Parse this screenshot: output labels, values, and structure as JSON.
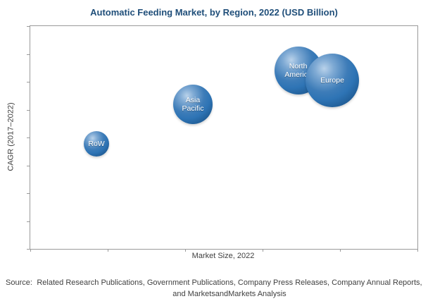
{
  "title": "Automatic Feeding Market, by Region, 2022 (USD Billion)",
  "axes": {
    "x_label": "Market Size, 2022",
    "y_label": "CAGR (2017–2022)"
  },
  "source": {
    "prefix": "Source:",
    "text": "Related Research Publications,  Government Publications,  Company Press Releases,  Company Annual Reports, and MarketsandMarkets Analysis"
  },
  "colors": {
    "title": "#1F4E79",
    "bubble_main": "#2E74B5",
    "bubble_dark": "#143E66",
    "bubble_highlight": "#B9D2EA",
    "axis_text": "#404040",
    "plot_border": "#9a9a9a"
  },
  "chart_data": {
    "type": "scatter",
    "title": "Automatic Feeding Market, by Region, 2022 (USD Billion)",
    "xlabel": "Market Size, 2022",
    "ylabel": "CAGR (2017–2022)",
    "axis_tick_labels": "none (axes unlabeled numerically)",
    "legend": "none",
    "grid": false,
    "x_tick_count": 5,
    "y_tick_count": 8,
    "series": [
      {
        "name": "RoW",
        "label_lines": [
          "RoW"
        ],
        "x_frac": 0.171,
        "y_frac": 0.53,
        "radius_px": 18,
        "relative_market_size": "smallest",
        "relative_cagr": "lowest"
      },
      {
        "name": "Asia Pacific",
        "label_lines": [
          "Asia",
          "Pacific"
        ],
        "x_frac": 0.42,
        "y_frac": 0.35,
        "radius_px": 28,
        "relative_market_size": "medium",
        "relative_cagr": "medium"
      },
      {
        "name": "North America",
        "label_lines": [
          "North",
          "America"
        ],
        "x_frac": 0.692,
        "y_frac": 0.2,
        "radius_px": 34,
        "relative_market_size": "large",
        "relative_cagr": "high"
      },
      {
        "name": "Europe",
        "label_lines": [
          "Europe"
        ],
        "x_frac": 0.78,
        "y_frac": 0.243,
        "radius_px": 38,
        "relative_market_size": "largest",
        "relative_cagr": "high"
      }
    ]
  }
}
